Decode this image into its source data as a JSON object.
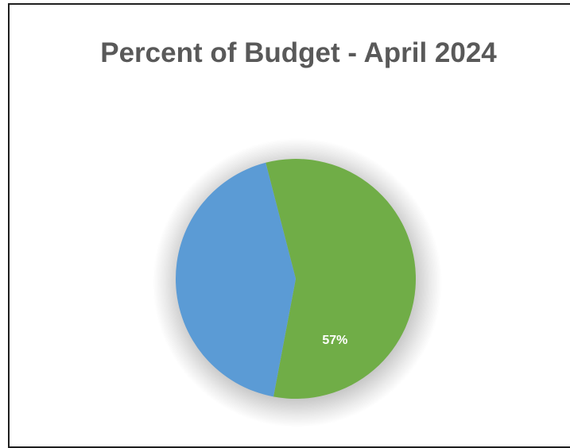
{
  "chart_data": {
    "type": "pie",
    "title": "Percent of Budget - April 2024",
    "slices": [
      {
        "value": 57,
        "label": "57%",
        "color": "#70AD47"
      },
      {
        "value": 43,
        "label": "",
        "color": "#5B9BD5"
      }
    ],
    "start_angle_deg": -104.5,
    "legend": "none"
  }
}
